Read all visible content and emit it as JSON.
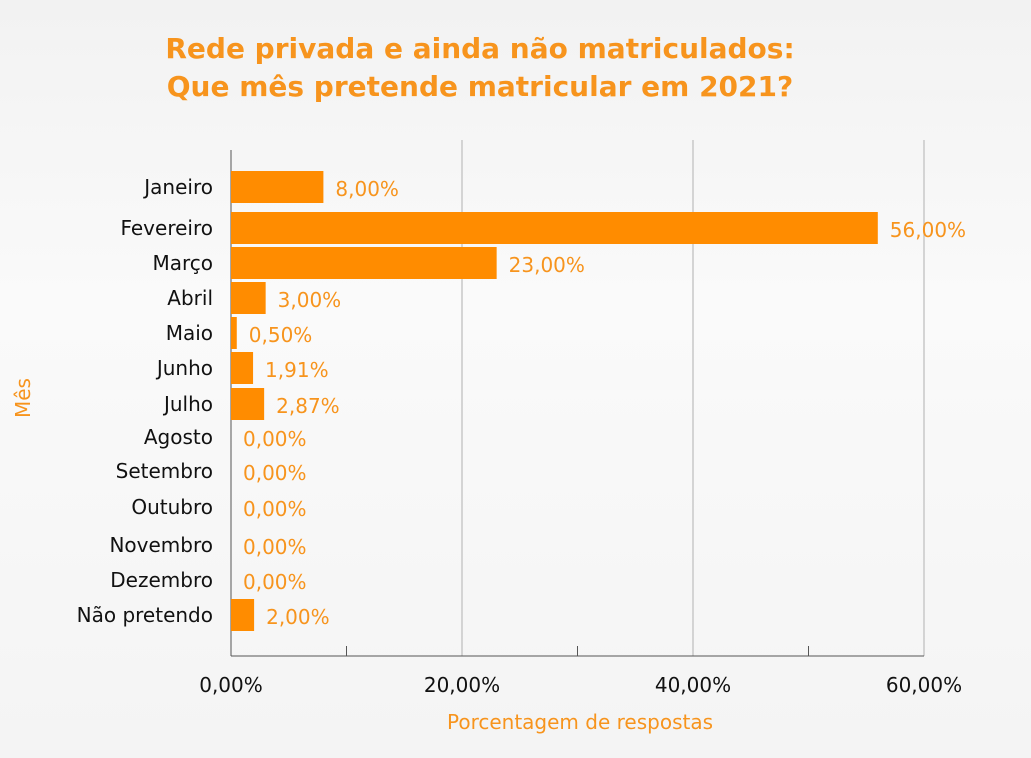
{
  "chart_data": {
    "type": "bar",
    "orientation": "horizontal",
    "title": "Rede privada e ainda não matriculados:",
    "subtitle": "Que mês pretende matricular em 2021?",
    "xlabel": "Porcentagem de respostas",
    "ylabel": "Mês",
    "categories": [
      "Janeiro",
      "Fevereiro",
      "Março",
      "Abril",
      "Maio",
      "Junho",
      "Julho",
      "Agosto",
      "Setembro",
      "Outubro",
      "Novembro",
      "Dezembro",
      "Não pretendo"
    ],
    "values": [
      8.0,
      56.0,
      23.0,
      3.0,
      0.5,
      1.91,
      2.87,
      0,
      0,
      0,
      0,
      0,
      2.0
    ],
    "data_labels": [
      "8,00%",
      "56,00%",
      "23,00%",
      "3,00%",
      "0,50%",
      "1,91%",
      "2,87%",
      "0,00%",
      "0,00%",
      "0,00%",
      "0,00%",
      "0,00%",
      "2,00%"
    ],
    "xlim": [
      0,
      60
    ],
    "x_ticks": [
      0,
      20,
      40,
      60
    ],
    "x_tick_labels": [
      "0,00%",
      "20,00%",
      "40,00%",
      "60,00%"
    ],
    "grid": true,
    "legend": "none",
    "colors": {
      "bar": "#ff8c00",
      "label": "#f7941d",
      "grid": "#c8c8c8",
      "text": "#111111"
    }
  }
}
